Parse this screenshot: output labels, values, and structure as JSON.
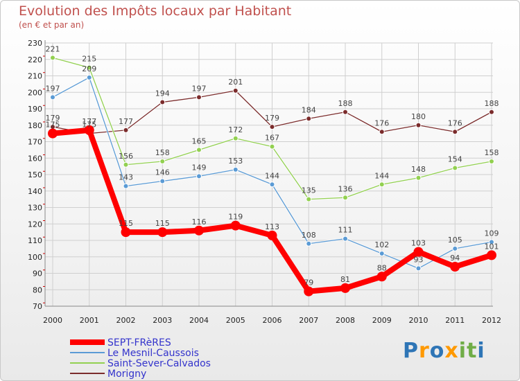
{
  "chart_data": {
    "type": "line",
    "title": "Evolution des Impôts locaux par Habitant",
    "subtitle": "(en € et par an)",
    "categories": [
      "2000",
      "2001",
      "2002",
      "2003",
      "2004",
      "2005",
      "2006",
      "2007",
      "2008",
      "2009",
      "2010",
      "2011",
      "2012"
    ],
    "ylim": [
      70,
      230
    ],
    "yticks": [
      70,
      80,
      90,
      100,
      110,
      120,
      130,
      140,
      150,
      160,
      170,
      180,
      190,
      200,
      210,
      220,
      230
    ],
    "grid": true,
    "legend_position": "bottom-left",
    "series": [
      {
        "name": "SEPT-FRèRES",
        "color": "#ff0000",
        "values": [
          175,
          177,
          115,
          115,
          116,
          119,
          113,
          79,
          81,
          88,
          103,
          94,
          101
        ]
      },
      {
        "name": "Le Mesnil-Caussois",
        "color": "#5b9bd5",
        "values": [
          197,
          209,
          143,
          146,
          149,
          153,
          144,
          108,
          111,
          102,
          93,
          105,
          109
        ]
      },
      {
        "name": "Saint-Sever-Calvados",
        "color": "#92d050",
        "values": [
          221,
          215,
          156,
          158,
          165,
          172,
          167,
          135,
          136,
          144,
          148,
          154,
          158
        ]
      },
      {
        "name": "Morigny",
        "color": "#7b2c2c",
        "values": [
          179,
          175,
          177,
          194,
          197,
          201,
          179,
          184,
          188,
          176,
          180,
          176,
          188
        ]
      }
    ]
  },
  "logo": {
    "text": "Proxiti",
    "letters": [
      "P",
      "r",
      "o",
      "x",
      "i",
      "t",
      "i"
    ],
    "colors": [
      "#2e75b6",
      "#ff9900",
      "#2e75b6",
      "#ff9900",
      "#70ad47",
      "#70ad47",
      "#2e75b6"
    ]
  }
}
